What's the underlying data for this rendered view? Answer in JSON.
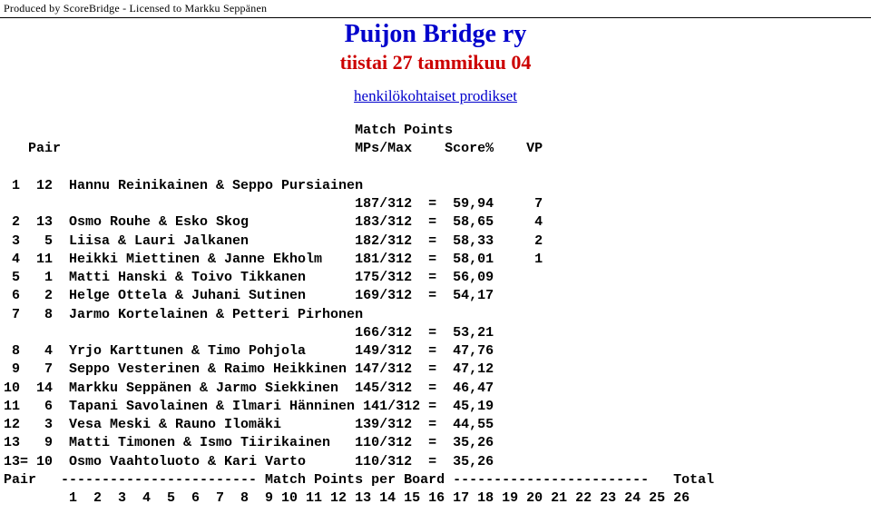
{
  "license_text": "Produced by ScoreBridge - Licensed to Markku Seppänen",
  "title": "Puijon Bridge ry",
  "subtitle": "tiistai 27 tammikuu 04",
  "link_text": "henkilökohtaiset prodikset",
  "colors": {
    "title": "#0000cc",
    "subtitle": "#cc0000",
    "link": "#0000cc",
    "text": "#000000",
    "background": "#ffffff"
  },
  "header": {
    "line1": "                                           Match Points",
    "line2": "   Pair                                    MPs/Max    Score%    VP"
  },
  "rows": [
    " 1  12  Hannu Reinikainen & Seppo Pursiainen",
    "                                           187/312  =  59,94     7",
    " 2  13  Osmo Rouhe & Esko Skog             183/312  =  58,65     4",
    " 3   5  Liisa & Lauri Jalkanen             182/312  =  58,33     2",
    " 4  11  Heikki Miettinen & Janne Ekholm    181/312  =  58,01     1",
    " 5   1  Matti Hanski & Toivo Tikkanen      175/312  =  56,09",
    " 6   2  Helge Ottela & Juhani Sutinen      169/312  =  54,17",
    " 7   8  Jarmo Kortelainen & Petteri Pirhonen",
    "                                           166/312  =  53,21",
    " 8   4  Yrjo Karttunen & Timo Pohjola      149/312  =  47,76",
    " 9   7  Seppo Vesterinen & Raimo Heikkinen 147/312  =  47,12",
    "10  14  Markku Seppänen & Jarmo Siekkinen  145/312  =  46,47",
    "11   6  Tapani Savolainen & Ilmari Hänninen 141/312 =  45,19",
    "12   3  Vesa Meski & Rauno Ilomäki         139/312  =  44,55",
    "13   9  Matti Timonen & Ismo Tiirikainen   110/312  =  35,26",
    "13= 10  Osmo Vaahtoluoto & Kari Varto      110/312  =  35,26"
  ],
  "footer": {
    "line1": "Pair   ------------------------ Match Points per Board ------------------------   Total",
    "line2": "        1  2  3  4  5  6  7  8  9 10 11 12 13 14 15 16 17 18 19 20 21 22 23 24 25 26"
  }
}
